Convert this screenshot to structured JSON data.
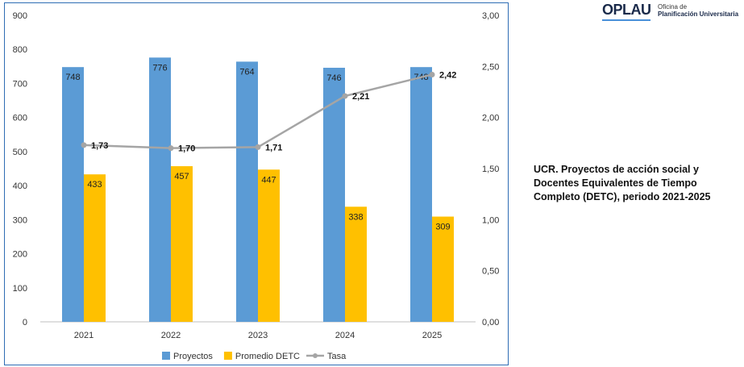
{
  "logo": {
    "main": "OPLAU",
    "sub_line1": "Oficina de",
    "sub_line2": "Planificación Universitaria"
  },
  "chart_data": {
    "type": "bar",
    "title": "UCR. Proyectos de acción social y Docentes Equivalentes de Tiempo Completo (DETC), periodo 2021-2025",
    "categories": [
      "2021",
      "2022",
      "2023",
      "2024",
      "2025"
    ],
    "series": [
      {
        "name": "Proyectos",
        "type": "bar",
        "axis": "left",
        "color": "#5b9bd5",
        "values": [
          748,
          776,
          764,
          746,
          748
        ],
        "labels": [
          "748",
          "776",
          "764",
          "746",
          "748"
        ]
      },
      {
        "name": "Promedio DETC",
        "type": "bar",
        "axis": "left",
        "color": "#ffc000",
        "values": [
          433,
          457,
          447,
          338,
          309
        ],
        "labels": [
          "433",
          "457",
          "447",
          "338",
          "309"
        ]
      },
      {
        "name": "Tasa",
        "type": "line",
        "axis": "right",
        "color": "#a5a5a5",
        "values": [
          1.73,
          1.7,
          1.71,
          2.21,
          2.42
        ],
        "labels": [
          "1,73",
          "1,70",
          "1,71",
          "2,21",
          "2,42"
        ]
      }
    ],
    "ylim_left": [
      0,
      900
    ],
    "yticks_left": [
      "0",
      "100",
      "200",
      "300",
      "400",
      "500",
      "600",
      "700",
      "800",
      "900"
    ],
    "ylim_right": [
      0,
      3
    ],
    "yticks_right": [
      "0,00",
      "0,50",
      "1,00",
      "1,50",
      "2,00",
      "2,50",
      "3,00"
    ],
    "grid": false,
    "legend_position": "bottom"
  }
}
